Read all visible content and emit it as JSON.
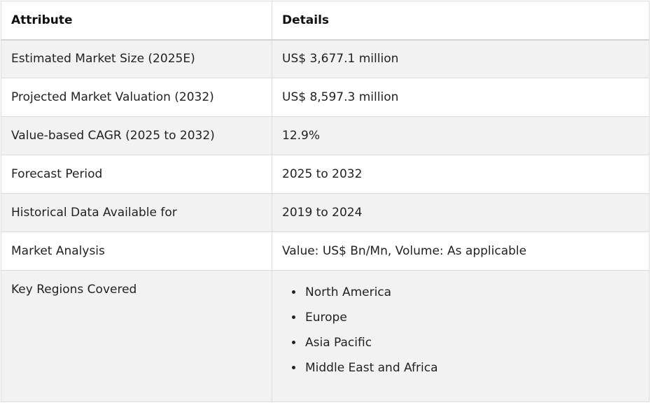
{
  "table": {
    "headers": {
      "attribute": "Attribute",
      "details": "Details"
    },
    "rows": [
      {
        "attribute": "Estimated Market Size (2025E)",
        "details": "US$ 3,677.1 million"
      },
      {
        "attribute": "Projected Market Valuation (2032)",
        "details": "US$ 8,597.3 million"
      },
      {
        "attribute": "Value-based CAGR (2025 to 2032)",
        "details": "12.9%"
      },
      {
        "attribute": "Forecast Period",
        "details": "2025 to 2032"
      },
      {
        "attribute": "Historical Data Available for",
        "details": "2019 to 2024"
      },
      {
        "attribute": "Market Analysis",
        "details": "Value: US$ Bn/Mn, Volume: As applicable"
      }
    ],
    "regions": {
      "attribute": "Key Regions Covered",
      "items": [
        "North America",
        "Europe",
        "Asia Pacific",
        "Middle East and Africa"
      ]
    }
  },
  "colors": {
    "border": "#dcdcdc",
    "row_shaded": "#f2f2f2",
    "row_plain": "#ffffff",
    "text": "#222222"
  }
}
